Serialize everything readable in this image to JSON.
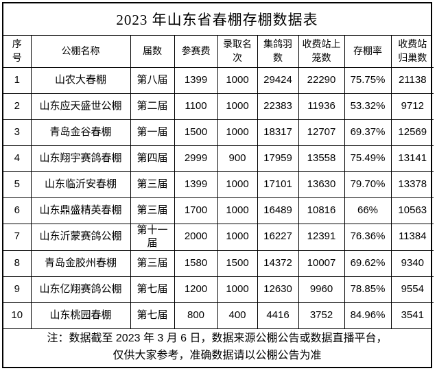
{
  "title": "2023 年山东省春棚存棚数据表",
  "columns": {
    "idx": "序号",
    "name": "公棚名称",
    "session": "届数",
    "fee": "参赛费",
    "rank": "录取名次",
    "collected": "集鸽羽数",
    "caged": "收费站上笼数",
    "rate": "存棚率",
    "homed": "收费站归巢数"
  },
  "rows": [
    {
      "idx": 1,
      "name": "山农大春棚",
      "session": "第八届",
      "fee": 1399,
      "rank": 1000,
      "collected": 29424,
      "caged": 22290,
      "rate": "75.75%",
      "homed": 21138
    },
    {
      "idx": 2,
      "name": "山东应天盛世公棚",
      "session": "第二届",
      "fee": 1100,
      "rank": 1000,
      "collected": 22383,
      "caged": 11936,
      "rate": "53.32%",
      "homed": 9712
    },
    {
      "idx": 3,
      "name": "青岛金谷春棚",
      "session": "第一届",
      "fee": 1500,
      "rank": 1000,
      "collected": 18317,
      "caged": 12707,
      "rate": "69.37%",
      "homed": 12569
    },
    {
      "idx": 4,
      "name": "山东翔宇赛鸽春棚",
      "session": "第四届",
      "fee": 2999,
      "rank": 900,
      "collected": 17959,
      "caged": 13558,
      "rate": "75.49%",
      "homed": 13141
    },
    {
      "idx": 5,
      "name": "山东临沂安春棚",
      "session": "第三届",
      "fee": 1399,
      "rank": 1000,
      "collected": 17101,
      "caged": 13630,
      "rate": "79.70%",
      "homed": 13378
    },
    {
      "idx": 6,
      "name": "山东鼎盛精英春棚",
      "session": "第三届",
      "fee": 1700,
      "rank": 1000,
      "collected": 16489,
      "caged": 10816,
      "rate": "66%",
      "homed": 10563
    },
    {
      "idx": 7,
      "name": "山东沂蒙赛鸽公棚",
      "session": "第十一届",
      "fee": 2000,
      "rank": 1000,
      "collected": 16227,
      "caged": 12391,
      "rate": "76.36%",
      "homed": 11384
    },
    {
      "idx": 8,
      "name": "青岛金胶州春棚",
      "session": "第三届",
      "fee": 1580,
      "rank": 1500,
      "collected": 14372,
      "caged": 10007,
      "rate": "69.62%",
      "homed": 9340
    },
    {
      "idx": 9,
      "name": "山东亿翔赛鸽公棚",
      "session": "第七届",
      "fee": 1200,
      "rank": 1000,
      "collected": 12630,
      "caged": 9960,
      "rate": "78.85%",
      "homed": 9554
    },
    {
      "idx": 10,
      "name": "山东桃园春棚",
      "session": "第七届",
      "fee": 800,
      "rank": 400,
      "collected": 4416,
      "caged": 3752,
      "rate": "84.96%",
      "homed": 3541
    }
  ],
  "note": {
    "line1": "注：数据截至 2023 年 3 月 6 日，数据来源公棚公告或数据直播平台，",
    "line2": "仅供大家参考，准确数据请以公棚公告为准"
  },
  "colors": {
    "background": "#ffffff",
    "text": "#000000",
    "border": "#000000"
  },
  "chart_data": {
    "type": "table",
    "title": "2023 年山东省春棚存棚数据表",
    "columns": [
      "序号",
      "公棚名称",
      "届数",
      "参赛费",
      "录取名次",
      "集鸽羽数",
      "收费站上笼数",
      "存棚率",
      "收费站归巢数"
    ],
    "rows": [
      [
        1,
        "山农大春棚",
        "第八届",
        1399,
        1000,
        29424,
        22290,
        "75.75%",
        21138
      ],
      [
        2,
        "山东应天盛世公棚",
        "第二届",
        1100,
        1000,
        22383,
        11936,
        "53.32%",
        9712
      ],
      [
        3,
        "青岛金谷春棚",
        "第一届",
        1500,
        1000,
        18317,
        12707,
        "69.37%",
        12569
      ],
      [
        4,
        "山东翔宇赛鸽春棚",
        "第四届",
        2999,
        900,
        17959,
        13558,
        "75.49%",
        13141
      ],
      [
        5,
        "山东临沂安春棚",
        "第三届",
        1399,
        1000,
        17101,
        13630,
        "79.70%",
        13378
      ],
      [
        6,
        "山东鼎盛精英春棚",
        "第三届",
        1700,
        1000,
        16489,
        10816,
        "66%",
        10563
      ],
      [
        7,
        "山东沂蒙赛鸽公棚",
        "第十一届",
        2000,
        1000,
        16227,
        12391,
        "76.36%",
        11384
      ],
      [
        8,
        "青岛金胶州春棚",
        "第三届",
        1580,
        1500,
        14372,
        10007,
        "69.62%",
        9340
      ],
      [
        9,
        "山东亿翔赛鸽公棚",
        "第七届",
        1200,
        1000,
        12630,
        9960,
        "78.85%",
        9554
      ],
      [
        10,
        "山东桃园春棚",
        "第七届",
        800,
        400,
        4416,
        3752,
        "84.96%",
        3541
      ]
    ],
    "footnote": "注：数据截至 2023 年 3 月 6 日，数据来源公棚公告或数据直播平台，仅供大家参考，准确数据请以公棚公告为准"
  }
}
